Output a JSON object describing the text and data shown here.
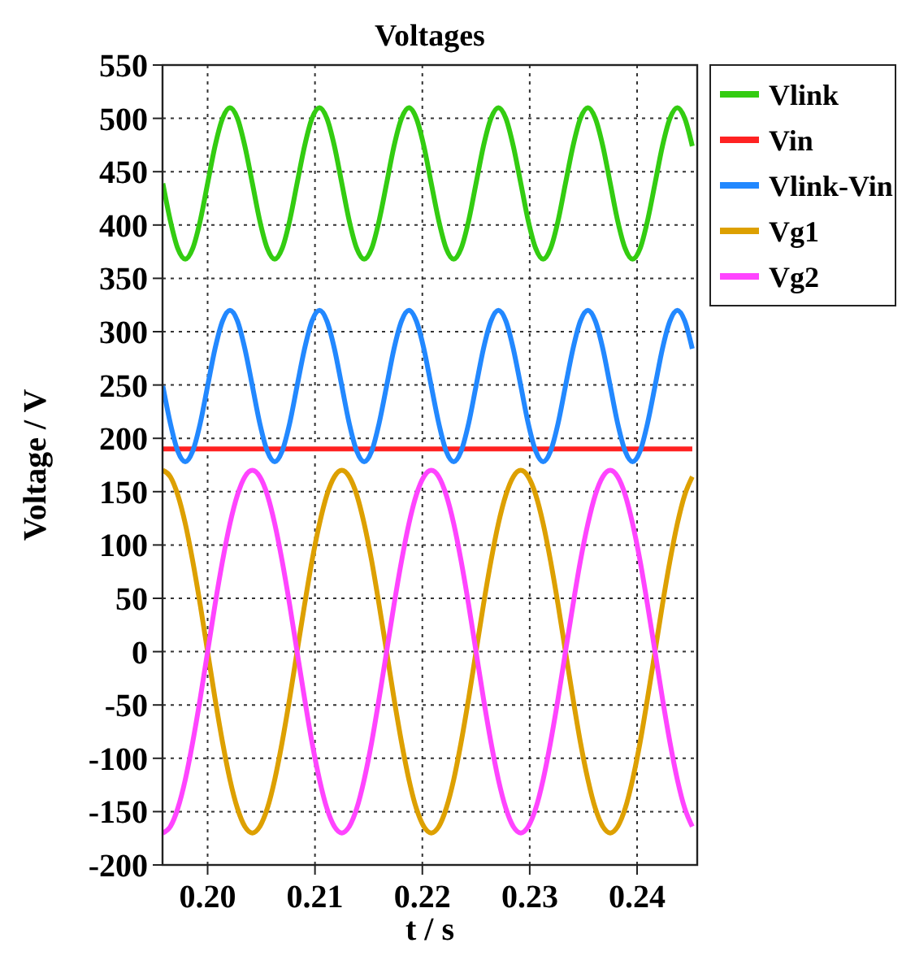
{
  "chart_data": {
    "type": "line",
    "title": "Voltages",
    "xlabel": "t / s",
    "ylabel": "Voltage / V",
    "xlim": [
      0.1958,
      0.2456
    ],
    "xticks": [
      {
        "value": 0.2,
        "label": "0.20"
      },
      0.21,
      0.22,
      0.23,
      0.24
    ],
    "ylim": [
      -200,
      550
    ],
    "yticks": [
      -200,
      -150,
      -100,
      -50,
      0,
      50,
      100,
      150,
      200,
      250,
      300,
      350,
      400,
      450,
      500,
      550
    ],
    "grid": true,
    "legend": "right",
    "line_style": "solid",
    "marker": "none",
    "x": [
      0.19583,
      0.19653,
      0.19722,
      0.19792,
      0.19861,
      0.19931,
      0.2,
      0.20069,
      0.20139,
      0.20208,
      0.20278,
      0.20347,
      0.20417,
      0.20486,
      0.20556,
      0.20625,
      0.20694,
      0.20764,
      0.20833,
      0.20903,
      0.20972,
      0.21042,
      0.21111,
      0.21181,
      0.2125,
      0.21319,
      0.21389,
      0.21458,
      0.21528,
      0.21597,
      0.21667,
      0.21736,
      0.21806,
      0.21875,
      0.21944,
      0.22014,
      0.22083,
      0.22153,
      0.22222,
      0.22292,
      0.22361,
      0.22431,
      0.225,
      0.22569,
      0.22639,
      0.22708,
      0.22778,
      0.22847,
      0.22917,
      0.22986,
      0.23056,
      0.23125,
      0.23194,
      0.23264,
      0.23333,
      0.23403,
      0.23472,
      0.23542,
      0.23611,
      0.23681,
      0.2375,
      0.23819,
      0.23889,
      0.23958,
      0.24028,
      0.24097,
      0.24167,
      0.24236,
      0.24306,
      0.24375,
      0.24444,
      0.24514
    ],
    "series": [
      {
        "name": "Vlink",
        "color": "#33cc11",
        "values": [
          439,
          404,
          378,
          368,
          378,
          404,
          439,
          474,
          500,
          510,
          500,
          474,
          439,
          404,
          378,
          368,
          378,
          404,
          439,
          474,
          500,
          510,
          500,
          474,
          439,
          404,
          378,
          368,
          378,
          404,
          439,
          474,
          500,
          510,
          500,
          474,
          439,
          404,
          378,
          368,
          378,
          404,
          439,
          474,
          500,
          510,
          500,
          474,
          439,
          404,
          378,
          368,
          378,
          404,
          439,
          474,
          500,
          510,
          500,
          474,
          439,
          404,
          378,
          368,
          378,
          404,
          439,
          474,
          500,
          510,
          500,
          474
        ]
      },
      {
        "name": "Vin",
        "color": "#ff2222",
        "x": [
          0.19583,
          0.24514
        ],
        "values": [
          190,
          190
        ]
      },
      {
        "name": "Vlink-Vin",
        "color": "#2288ff",
        "values": [
          249,
          214,
          188,
          178,
          188,
          214,
          249,
          284,
          310,
          320,
          310,
          284,
          249,
          214,
          188,
          178,
          188,
          214,
          249,
          284,
          310,
          320,
          310,
          284,
          249,
          214,
          188,
          178,
          188,
          214,
          249,
          284,
          310,
          320,
          310,
          284,
          249,
          214,
          188,
          178,
          188,
          214,
          249,
          284,
          310,
          320,
          310,
          284,
          249,
          214,
          188,
          178,
          188,
          214,
          249,
          284,
          310,
          320,
          310,
          284,
          249,
          214,
          188,
          178,
          188,
          214,
          249,
          284,
          310,
          320,
          310,
          284
        ]
      },
      {
        "name": "Vg1",
        "color": "#dda000",
        "values": [
          170,
          164,
          147,
          120,
          85,
          44,
          0,
          -44,
          -85,
          -120,
          -147,
          -164,
          -170,
          -164,
          -147,
          -120,
          -85,
          -44,
          0,
          44,
          85,
          120,
          147,
          164,
          170,
          164,
          147,
          120,
          85,
          44,
          0,
          -44,
          -85,
          -120,
          -147,
          -164,
          -170,
          -164,
          -147,
          -120,
          -85,
          -44,
          0,
          44,
          85,
          120,
          147,
          164,
          170,
          164,
          147,
          120,
          85,
          44,
          0,
          -44,
          -85,
          -120,
          -147,
          -164,
          -170,
          -164,
          -147,
          -120,
          -85,
          -44,
          0,
          44,
          85,
          120,
          147,
          164
        ]
      },
      {
        "name": "Vg2",
        "color": "#ff44ff",
        "values": [
          -170,
          -164,
          -147,
          -120,
          -85,
          -44,
          0,
          44,
          85,
          120,
          147,
          164,
          170,
          164,
          147,
          120,
          85,
          44,
          0,
          -44,
          -85,
          -120,
          -147,
          -164,
          -170,
          -164,
          -147,
          -120,
          -85,
          -44,
          0,
          44,
          85,
          120,
          147,
          164,
          170,
          164,
          147,
          120,
          85,
          44,
          0,
          -44,
          -85,
          -120,
          -147,
          -164,
          -170,
          -164,
          -147,
          -120,
          -85,
          -44,
          0,
          44,
          85,
          120,
          147,
          164,
          170,
          164,
          147,
          120,
          85,
          44,
          0,
          -44,
          -85,
          -120,
          -147,
          -164
        ]
      }
    ]
  }
}
